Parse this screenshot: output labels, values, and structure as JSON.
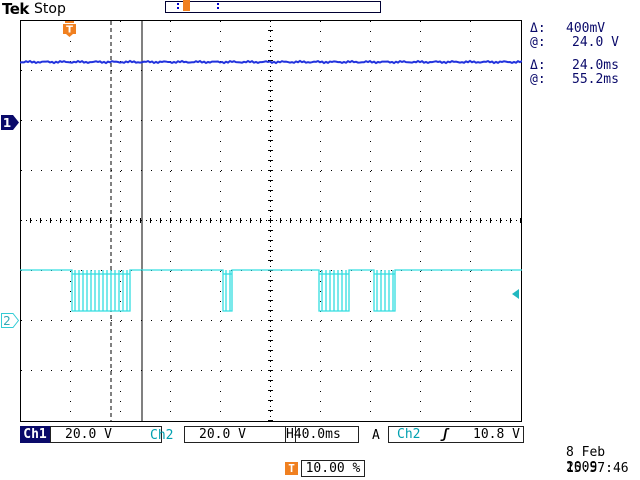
{
  "header": {
    "brand": "Tek",
    "status": "Stop"
  },
  "markers": {
    "trigger": "T",
    "ch1": "1",
    "ch2": "2"
  },
  "measurements": {
    "delta_v_symbol": "Δ:",
    "delta_v": "400mV",
    "at_v_symbol": "@:",
    "at_v": "24.0 V",
    "delta_t_symbol": "Δ:",
    "delta_t": "24.0ms",
    "at_t_symbol": "@:",
    "at_t": "55.2ms"
  },
  "status_bar": {
    "ch1_label": "Ch1",
    "ch1_scale": "20.0 V",
    "ch2_label": "Ch2",
    "ch2_scale": "20.0 V",
    "horizontal": "H40.0ms",
    "acq_mode": "A",
    "trigger_source": "Ch2",
    "trigger_slope": "ʃ",
    "trigger_level": "10.8 V",
    "trigger_position": "10.00 %",
    "trigger_position_icon": "T"
  },
  "datetime": {
    "date": "8 Feb  2009",
    "time": "15:57:46"
  },
  "colors": {
    "ch1": "#2233dd",
    "ch2": "#33dde0",
    "trigger": "#f08020",
    "label_navy": "#0a0a6a"
  },
  "icons": {
    "trigger_marker": "trigger-t-icon",
    "ch1_marker": "channel-1-marker-icon",
    "ch2_marker": "channel-2-marker-icon",
    "ch2_level": "level-arrow-icon"
  }
}
